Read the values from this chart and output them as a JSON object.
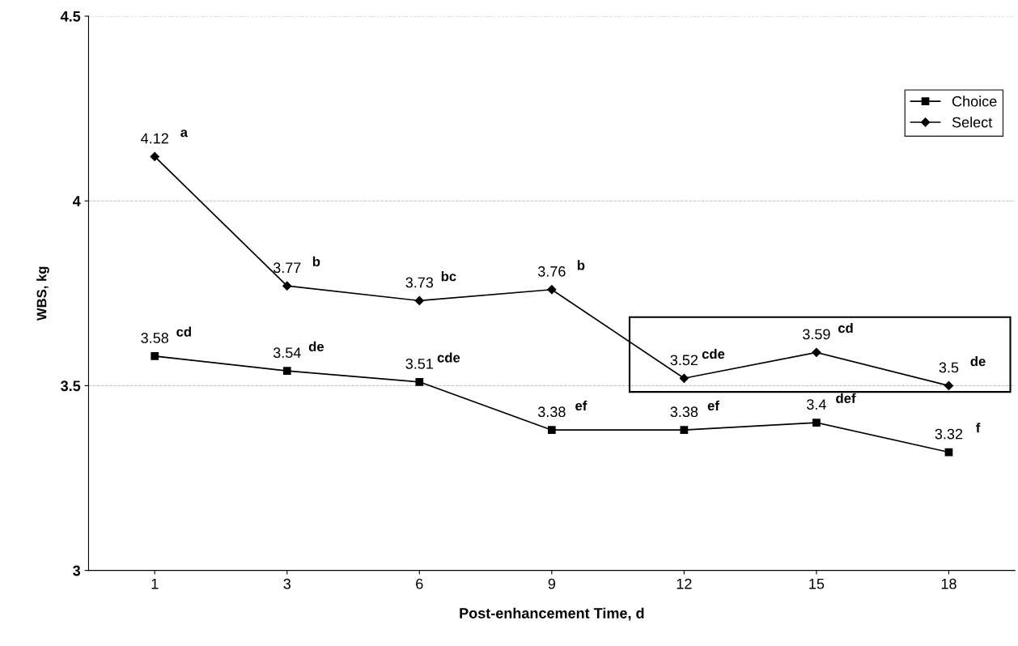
{
  "chart_data": {
    "type": "line",
    "xlabel": "Post-enhancement Time, d",
    "ylabel": "WBS, kg",
    "categories": [
      "1",
      "3",
      "6",
      "9",
      "12",
      "15",
      "18"
    ],
    "series": [
      {
        "name": "Choice",
        "color": "#000000",
        "marker": "square",
        "values": [
          3.58,
          3.54,
          3.51,
          3.38,
          3.38,
          3.4,
          3.32
        ]
      },
      {
        "name": "Select",
        "color": "#000000",
        "marker": "diamond",
        "values": [
          4.12,
          3.77,
          3.73,
          3.76,
          3.52,
          3.59,
          3.5
        ]
      }
    ],
    "ylim": [
      3,
      4.5
    ],
    "yticks": [
      3,
      3.5,
      4,
      4.5
    ],
    "grid": "y",
    "legend": "top right",
    "data_labels": true,
    "line_style": "solid",
    "annotations": [
      {
        "text": "cd",
        "x": "1",
        "y": 3.58
      },
      {
        "text": "de",
        "x": "3",
        "y": 3.54
      },
      {
        "text": "cde",
        "x": "6",
        "y": 3.51
      },
      {
        "text": "ef",
        "x": "9",
        "y": 3.38
      },
      {
        "text": "ef",
        "x": "12",
        "y": 3.38
      },
      {
        "text": "def",
        "x": "15",
        "y": 3.4
      },
      {
        "text": "f",
        "x": "18",
        "y": 3.32
      },
      {
        "text": "a",
        "x": "1",
        "y": 4.12
      },
      {
        "text": "b",
        "x": "3",
        "y": 3.77
      },
      {
        "text": "bc",
        "x": "6",
        "y": 3.73
      },
      {
        "text": "b",
        "x": "9",
        "y": 3.76
      },
      {
        "text": "cde",
        "x": "12",
        "y": 3.52
      },
      {
        "text": "cd",
        "x": "15",
        "y": 3.59
      },
      {
        "text": "de",
        "x": "18",
        "y": 3.5
      }
    ]
  }
}
